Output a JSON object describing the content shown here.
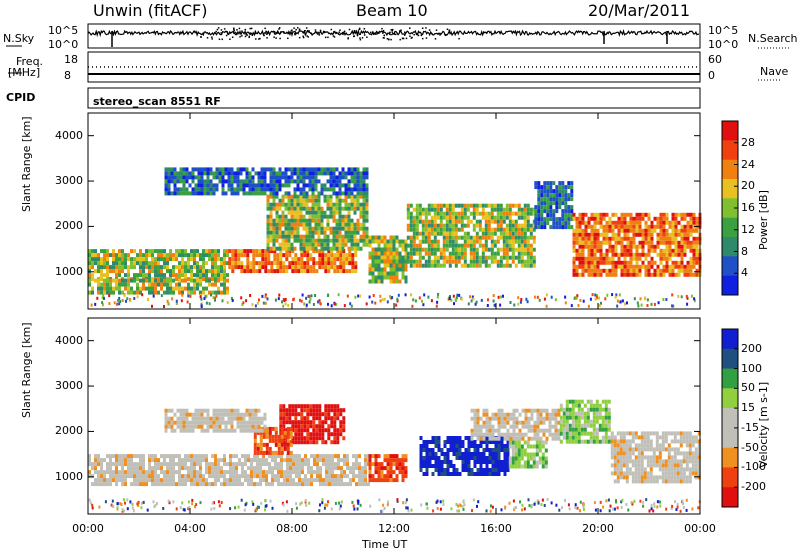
{
  "header": {
    "station": "Unwin (fitACF)",
    "beam": "Beam 10",
    "date": "20/Mar/2011"
  },
  "panels": {
    "nsky_label": "N.Sky",
    "nsky_ticks": [
      "10^5",
      "10^0"
    ],
    "nsearch_label": "N.Search",
    "nsearch_ticks": [
      "10^5",
      "10^0"
    ],
    "freq_label_1": "Freq.",
    "freq_label_2": "[MHz]",
    "freq_ticks": [
      "18",
      "8"
    ],
    "nave_label": "Nave",
    "nave_ticks": [
      "60",
      "0"
    ],
    "cpid_label": "CPID",
    "cpid_value": "stereo_scan 8551 RF"
  },
  "colors": {
    "power": [
      "#1020e0",
      "#2050c8",
      "#2e8a6a",
      "#3aa040",
      "#80c030",
      "#e8c020",
      "#f08010",
      "#f04010",
      "#e01010"
    ],
    "velocity": [
      "#e01010",
      "#f04010",
      "#f09020",
      "#c0c0b8",
      "#c0c0b8",
      "#90d040",
      "#30a040",
      "#205080",
      "#1020d0"
    ]
  },
  "chart_data": [
    {
      "type": "heatmap",
      "name": "power",
      "ylabel": "Slant Range [km]",
      "xlabel": "Time UT",
      "yticks": [
        "4000",
        "3000",
        "2000",
        "1000"
      ],
      "ylim": [
        180,
        4500
      ],
      "xticks": [
        "00:00",
        "04:00",
        "08:00",
        "12:00",
        "16:00",
        "20:00",
        "00:00"
      ],
      "colorbar_label": "Power [dB]",
      "colorbar_ticks": [
        "28",
        "24",
        "20",
        "16",
        "12",
        "8",
        "4"
      ],
      "colorbar_range": [
        0,
        32
      ],
      "regions": [
        {
          "t": [
            0,
            5.5
          ],
          "r": [
            850,
            1500
          ],
          "level": "mid"
        },
        {
          "t": [
            0,
            5.5
          ],
          "r": [
            500,
            850
          ],
          "level": "mid"
        },
        {
          "t": [
            5.5,
            10.5
          ],
          "r": [
            1000,
            1500
          ],
          "level": "high"
        },
        {
          "t": [
            7,
            11
          ],
          "r": [
            1500,
            2700
          ],
          "level": "mid"
        },
        {
          "t": [
            3,
            11
          ],
          "r": [
            2700,
            3300
          ],
          "level": "low"
        },
        {
          "t": [
            11,
            12.5
          ],
          "r": [
            800,
            1800
          ],
          "level": "mid"
        },
        {
          "t": [
            12.5,
            17.5
          ],
          "r": [
            1100,
            2500
          ],
          "level": "mid"
        },
        {
          "t": [
            17.5,
            19
          ],
          "r": [
            2000,
            3000
          ],
          "level": "low"
        },
        {
          "t": [
            19,
            24
          ],
          "r": [
            900,
            2300
          ],
          "level": "high"
        }
      ]
    },
    {
      "type": "heatmap",
      "name": "velocity",
      "ylabel": "Slant Range [km]",
      "xlabel": "Time UT",
      "yticks": [
        "4000",
        "3000",
        "2000",
        "1000"
      ],
      "ylim": [
        180,
        4500
      ],
      "xticks": [
        "00:00",
        "04:00",
        "08:00",
        "12:00",
        "16:00",
        "20:00",
        "00:00"
      ],
      "colorbar_label": "Velocity [m s-1]",
      "colorbar_ticks": [
        "200",
        "100",
        "50",
        "15",
        "-15",
        "-50",
        "-100",
        "-200"
      ],
      "colorbar_range": [
        -250,
        250
      ],
      "regions": [
        {
          "t": [
            0,
            11
          ],
          "r": [
            850,
            1500
          ],
          "v": 0
        },
        {
          "t": [
            7.5,
            10
          ],
          "r": [
            1800,
            2600
          ],
          "v": -200
        },
        {
          "t": [
            6.5,
            8
          ],
          "r": [
            1500,
            2100
          ],
          "v": -80
        },
        {
          "t": [
            3,
            7
          ],
          "r": [
            2000,
            2500
          ],
          "v": 0
        },
        {
          "t": [
            11,
            12.5
          ],
          "r": [
            900,
            1500
          ],
          "v": -80
        },
        {
          "t": [
            13,
            16.5
          ],
          "r": [
            1100,
            1900
          ],
          "v": 200
        },
        {
          "t": [
            16.5,
            18
          ],
          "r": [
            1200,
            1800
          ],
          "v": 50
        },
        {
          "t": [
            15,
            18.5
          ],
          "r": [
            1800,
            2500
          ],
          "v": 0
        },
        {
          "t": [
            18.5,
            20.5
          ],
          "r": [
            1800,
            2700
          ],
          "v": 50
        },
        {
          "t": [
            20.5,
            24
          ],
          "r": [
            900,
            2000
          ],
          "v": 0
        }
      ]
    }
  ]
}
